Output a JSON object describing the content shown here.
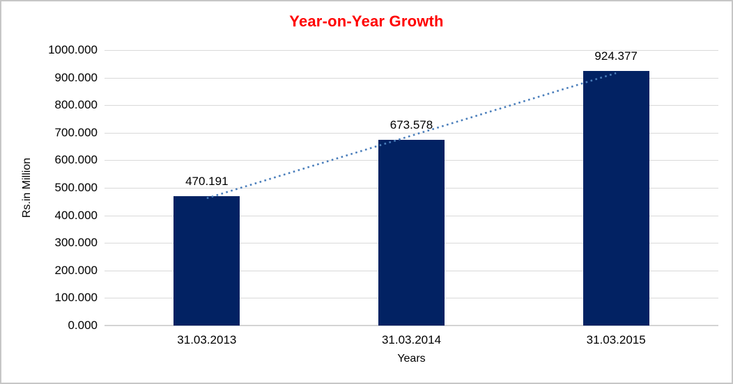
{
  "window": {
    "background": "#ffffff",
    "border_color": "#c6c6c6"
  },
  "chart_data": {
    "type": "bar",
    "title": "Year-on-Year Growth",
    "title_color": "#ff0000",
    "xlabel": "Years",
    "ylabel": "Rs.in Million",
    "categories": [
      "31.03.2013",
      "31.03.2014",
      "31.03.2015"
    ],
    "values": [
      470.191,
      673.578,
      924.377
    ],
    "data_labels": [
      "470.191",
      "673.578",
      "924.377"
    ],
    "ylim": [
      0,
      1000
    ],
    "ytick_step": 100,
    "ytick_labels": [
      "0.000",
      "100.000",
      "200.000",
      "300.000",
      "400.000",
      "500.000",
      "600.000",
      "700.000",
      "800.000",
      "900.000",
      "1000.000"
    ],
    "grid": true,
    "gridline_color": "#d9d9d9",
    "legend_position": "none",
    "bar_color": "#022263",
    "trendline": {
      "type": "linear",
      "style": "dotted",
      "color": "#4a7ebb"
    }
  }
}
